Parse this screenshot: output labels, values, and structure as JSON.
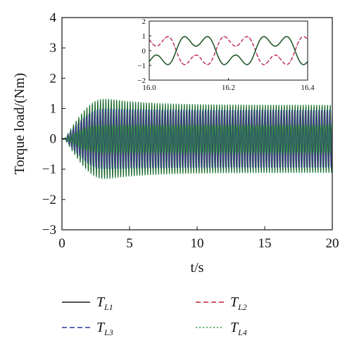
{
  "chart_data": {
    "type": "line",
    "xlabel": "t/s",
    "ylabel": "Torque load/(Nm)",
    "xlim": [
      0,
      20
    ],
    "ylim": [
      -3,
      4
    ],
    "xticks": [
      "0",
      "5",
      "10",
      "15",
      "20"
    ],
    "yticks": [
      "−3",
      "−2",
      "−1",
      "0",
      "1",
      "2",
      "3",
      "4"
    ],
    "grid": false,
    "legend_position": "bottom",
    "series": [
      {
        "name": "T",
        "subscript": "L1",
        "color": "#1a1a1a",
        "dash": "solid"
      },
      {
        "name": "T",
        "subscript": "L2",
        "color": "#c8203a",
        "dash": "dashed"
      },
      {
        "name": "T",
        "subscript": "L3",
        "color": "#2b3a9e",
        "dash": "dashed"
      },
      {
        "name": "T",
        "subscript": "L4",
        "color": "#1f9a3c",
        "dash": "dotted"
      }
    ],
    "main_envelope": {
      "ramp_start_t": 0.2,
      "ramp_end_t": 3.5,
      "peak_amplitude_green": 1.32,
      "steady_amplitude_green": 1.12,
      "steady_amplitude_blue": 0.95,
      "oscillation_frequency_hz": 5
    },
    "inset": {
      "xlim": [
        16.0,
        16.4
      ],
      "ylim": [
        -2,
        2
      ],
      "xticks": [
        "16.0",
        "16.2",
        "16.4"
      ],
      "yticks": [
        "−2",
        "−1",
        "0",
        "1",
        "2"
      ],
      "points_per_series": 161,
      "series_1_values_desc": "TL1 and TL4 overlap (dark green); TL2 and TL3 overlap (magenta dashed), phase-shifted",
      "base_frequency_hz": 5,
      "harmonic_ratio": 3,
      "fundamental_amplitude": 0.8,
      "harmonic_amplitude": 0.5
    }
  }
}
